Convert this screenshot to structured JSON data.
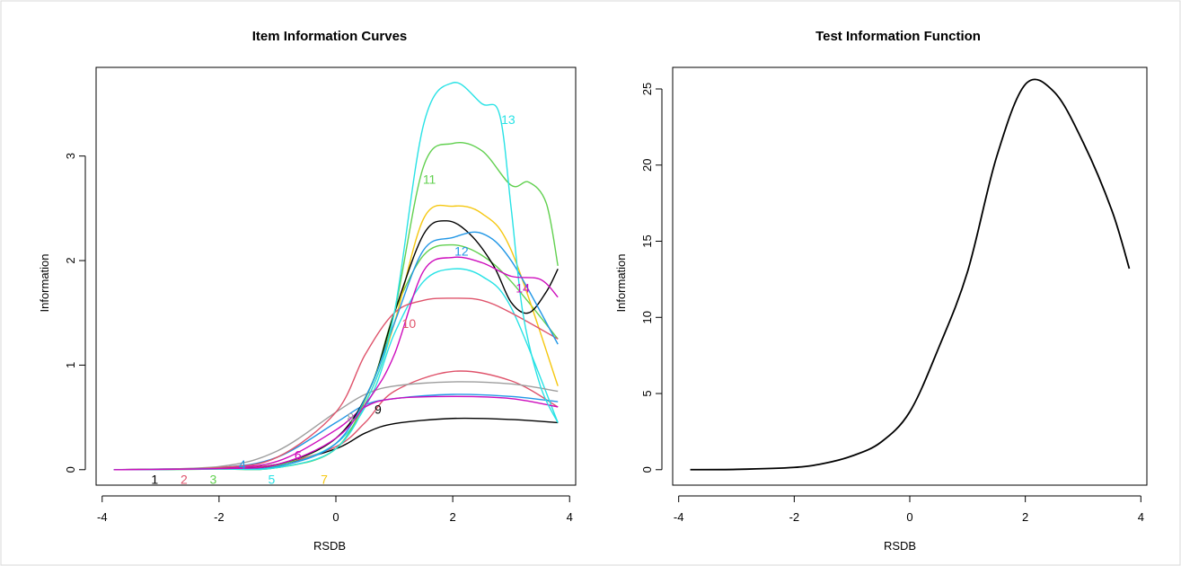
{
  "chart_data": [
    {
      "type": "line",
      "title": "Item Information Curves",
      "xlabel": "RSDB",
      "ylabel": "Information",
      "xlim": [
        -3.8,
        3.8
      ],
      "ylim": [
        0,
        3.7
      ],
      "x_ticks": [
        -4,
        -2,
        0,
        2,
        4
      ],
      "y_ticks": [
        0,
        1,
        2,
        3
      ],
      "x_tick_labels": [
        "-4",
        "-2",
        "0",
        "2",
        "4"
      ],
      "y_tick_labels": [
        "0",
        "1",
        "2",
        "3"
      ],
      "grid": false,
      "series": [
        {
          "label": "1",
          "color": "#000000",
          "label_pos": [
            -3.1,
            -0.09
          ],
          "points": [
            [
              -3.8,
              0
            ],
            [
              -2,
              0.01
            ],
            [
              -1,
              0.05
            ],
            [
              0,
              0.2
            ],
            [
              0.5,
              0.35
            ],
            [
              1,
              0.44
            ],
            [
              2,
              0.49
            ],
            [
              3,
              0.48
            ],
            [
              3.8,
              0.45
            ]
          ]
        },
        {
          "label": "2",
          "color": "#DF536B",
          "label_pos": [
            -2.6,
            -0.09
          ],
          "points": [
            [
              -3.8,
              0
            ],
            [
              -2,
              0.01
            ],
            [
              -1,
              0.05
            ],
            [
              0,
              0.22
            ],
            [
              0.5,
              0.45
            ],
            [
              1,
              0.75
            ],
            [
              2,
              0.94
            ],
            [
              3,
              0.85
            ],
            [
              3.8,
              0.6
            ]
          ]
        },
        {
          "label": "3",
          "color": "#61D04F",
          "label_pos": [
            -2.1,
            -0.09
          ],
          "points": [
            [
              -3.8,
              0
            ],
            [
              -2,
              0.01
            ],
            [
              -1,
              0.04
            ],
            [
              0,
              0.3
            ],
            [
              0.6,
              0.8
            ],
            [
              1,
              1.5
            ],
            [
              1.5,
              2.05
            ],
            [
              2,
              2.15
            ],
            [
              2.5,
              2.05
            ],
            [
              3,
              1.8
            ],
            [
              3.8,
              1.25
            ]
          ]
        },
        {
          "label": "4",
          "color": "#2297E6",
          "label_pos": [
            -1.6,
            0.05
          ],
          "points": [
            [
              -3.8,
              0
            ],
            [
              -2,
              0.02
            ],
            [
              -1,
              0.12
            ],
            [
              0,
              0.45
            ],
            [
              0.5,
              0.62
            ],
            [
              1,
              0.68
            ],
            [
              2,
              0.72
            ],
            [
              3,
              0.7
            ],
            [
              3.8,
              0.65
            ]
          ]
        },
        {
          "label": "5",
          "color": "#28E2E5",
          "label_pos": [
            -1.1,
            -0.09
          ],
          "points": [
            [
              -3.8,
              0
            ],
            [
              -2,
              0.01
            ],
            [
              -1,
              0.03
            ],
            [
              0,
              0.25
            ],
            [
              0.6,
              0.7
            ],
            [
              1,
              1.3
            ],
            [
              1.5,
              1.8
            ],
            [
              2,
              1.92
            ],
            [
              2.5,
              1.85
            ],
            [
              3,
              1.55
            ],
            [
              3.8,
              0.45
            ]
          ]
        },
        {
          "label": "6",
          "color": "#CD0BBC",
          "label_pos": [
            -0.65,
            0.14
          ],
          "points": [
            [
              -3.8,
              0
            ],
            [
              -2,
              0.02
            ],
            [
              -1,
              0.08
            ],
            [
              0,
              0.38
            ],
            [
              0.5,
              0.6
            ],
            [
              1,
              0.68
            ],
            [
              2,
              0.7
            ],
            [
              3,
              0.68
            ],
            [
              3.8,
              0.6
            ]
          ]
        },
        {
          "label": "7",
          "color": "#F5C710",
          "label_pos": [
            -0.2,
            -0.09
          ],
          "points": [
            [
              -3.8,
              0
            ],
            [
              -2,
              0.005
            ],
            [
              -1,
              0.02
            ],
            [
              0,
              0.2
            ],
            [
              0.6,
              0.75
            ],
            [
              1,
              1.4
            ],
            [
              1.5,
              2.4
            ],
            [
              2,
              2.52
            ],
            [
              2.5,
              2.45
            ],
            [
              3,
              2.1
            ],
            [
              3.8,
              0.8
            ]
          ]
        },
        {
          "label": "8",
          "color": "#9E9E9E",
          "label_pos": [
            0.25,
            0.5
          ],
          "points": [
            [
              -3.8,
              0
            ],
            [
              -2,
              0.03
            ],
            [
              -1,
              0.18
            ],
            [
              0,
              0.55
            ],
            [
              0.5,
              0.72
            ],
            [
              1,
              0.8
            ],
            [
              2,
              0.84
            ],
            [
              3,
              0.82
            ],
            [
              3.8,
              0.75
            ]
          ]
        },
        {
          "label": "9",
          "color": "#000000",
          "label_pos": [
            0.72,
            0.58
          ],
          "points": [
            [
              -3.8,
              0
            ],
            [
              -2,
              0.01
            ],
            [
              -1,
              0.05
            ],
            [
              0,
              0.3
            ],
            [
              0.6,
              0.8
            ],
            [
              1,
              1.5
            ],
            [
              1.5,
              2.25
            ],
            [
              1.9,
              2.38
            ],
            [
              2.3,
              2.25
            ],
            [
              2.7,
              1.95
            ],
            [
              3.0,
              1.6
            ],
            [
              3.3,
              1.5
            ],
            [
              3.6,
              1.7
            ],
            [
              3.8,
              1.92
            ]
          ]
        },
        {
          "label": "10",
          "color": "#DF536B",
          "label_pos": [
            1.25,
            1.4
          ],
          "points": [
            [
              -3.8,
              0
            ],
            [
              -2,
              0.02
            ],
            [
              -1,
              0.12
            ],
            [
              0,
              0.55
            ],
            [
              0.5,
              1.1
            ],
            [
              1,
              1.5
            ],
            [
              1.5,
              1.62
            ],
            [
              2,
              1.64
            ],
            [
              2.5,
              1.62
            ],
            [
              3,
              1.5
            ],
            [
              3.8,
              1.25
            ]
          ]
        },
        {
          "label": "11",
          "color": "#61D04F",
          "label_pos": [
            1.6,
            2.78
          ],
          "points": [
            [
              -3.8,
              0
            ],
            [
              -2,
              0.005
            ],
            [
              -1,
              0.02
            ],
            [
              0,
              0.2
            ],
            [
              0.6,
              0.8
            ],
            [
              1,
              1.5
            ],
            [
              1.5,
              2.9
            ],
            [
              2,
              3.12
            ],
            [
              2.5,
              3.05
            ],
            [
              3,
              2.72
            ],
            [
              3.3,
              2.75
            ],
            [
              3.6,
              2.55
            ],
            [
              3.8,
              1.95
            ]
          ]
        },
        {
          "label": "12",
          "color": "#2297E6",
          "label_pos": [
            2.15,
            2.09
          ],
          "points": [
            [
              -3.8,
              0
            ],
            [
              -2,
              0.01
            ],
            [
              -1,
              0.03
            ],
            [
              0,
              0.25
            ],
            [
              0.6,
              0.8
            ],
            [
              1,
              1.4
            ],
            [
              1.5,
              2.1
            ],
            [
              2,
              2.22
            ],
            [
              2.5,
              2.26
            ],
            [
              3,
              2.0
            ],
            [
              3.8,
              1.2
            ]
          ]
        },
        {
          "label": "13",
          "color": "#28E2E5",
          "label_pos": [
            2.95,
            3.35
          ],
          "points": [
            [
              -3.8,
              0
            ],
            [
              -2,
              0.005
            ],
            [
              -1,
              0.02
            ],
            [
              0,
              0.2
            ],
            [
              0.6,
              0.75
            ],
            [
              1,
              1.5
            ],
            [
              1.5,
              3.3
            ],
            [
              2,
              3.7
            ],
            [
              2.5,
              3.5
            ],
            [
              2.8,
              3.4
            ],
            [
              3.0,
              2.5
            ],
            [
              3.2,
              1.5
            ],
            [
              3.5,
              0.8
            ],
            [
              3.8,
              0.45
            ]
          ]
        },
        {
          "label": "14",
          "color": "#CD0BBC",
          "label_pos": [
            3.2,
            1.74
          ],
          "points": [
            [
              -3.8,
              0
            ],
            [
              -2,
              0.01
            ],
            [
              -1,
              0.05
            ],
            [
              0,
              0.3
            ],
            [
              0.6,
              0.7
            ],
            [
              1,
              1.1
            ],
            [
              1.5,
              1.9
            ],
            [
              2,
              2.03
            ],
            [
              2.5,
              1.98
            ],
            [
              3,
              1.85
            ],
            [
              3.5,
              1.82
            ],
            [
              3.8,
              1.65
            ]
          ]
        }
      ]
    },
    {
      "type": "line",
      "title": "Test Information Function",
      "xlabel": "RSDB",
      "ylabel": "Information",
      "xlim": [
        -3.8,
        3.8
      ],
      "ylim": [
        0,
        25.4
      ],
      "x_ticks": [
        -4,
        -2,
        0,
        2,
        4
      ],
      "y_ticks": [
        0,
        5,
        10,
        15,
        20,
        25
      ],
      "x_tick_labels": [
        "-4",
        "-2",
        "0",
        "2",
        "4"
      ],
      "y_tick_labels": [
        "0",
        "5",
        "10",
        "15",
        "20",
        "25"
      ],
      "grid": false,
      "series": [
        {
          "color": "#000000",
          "points": [
            [
              -3.8,
              0
            ],
            [
              -3,
              0.02
            ],
            [
              -2,
              0.15
            ],
            [
              -1.5,
              0.4
            ],
            [
              -1,
              0.9
            ],
            [
              -0.5,
              1.8
            ],
            [
              0,
              3.8
            ],
            [
              0.5,
              8
            ],
            [
              1,
              13
            ],
            [
              1.5,
              20.5
            ],
            [
              2,
              25.3
            ],
            [
              2.5,
              24.8
            ],
            [
              3,
              21.5
            ],
            [
              3.5,
              17
            ],
            [
              3.8,
              13.2
            ]
          ]
        }
      ]
    }
  ]
}
